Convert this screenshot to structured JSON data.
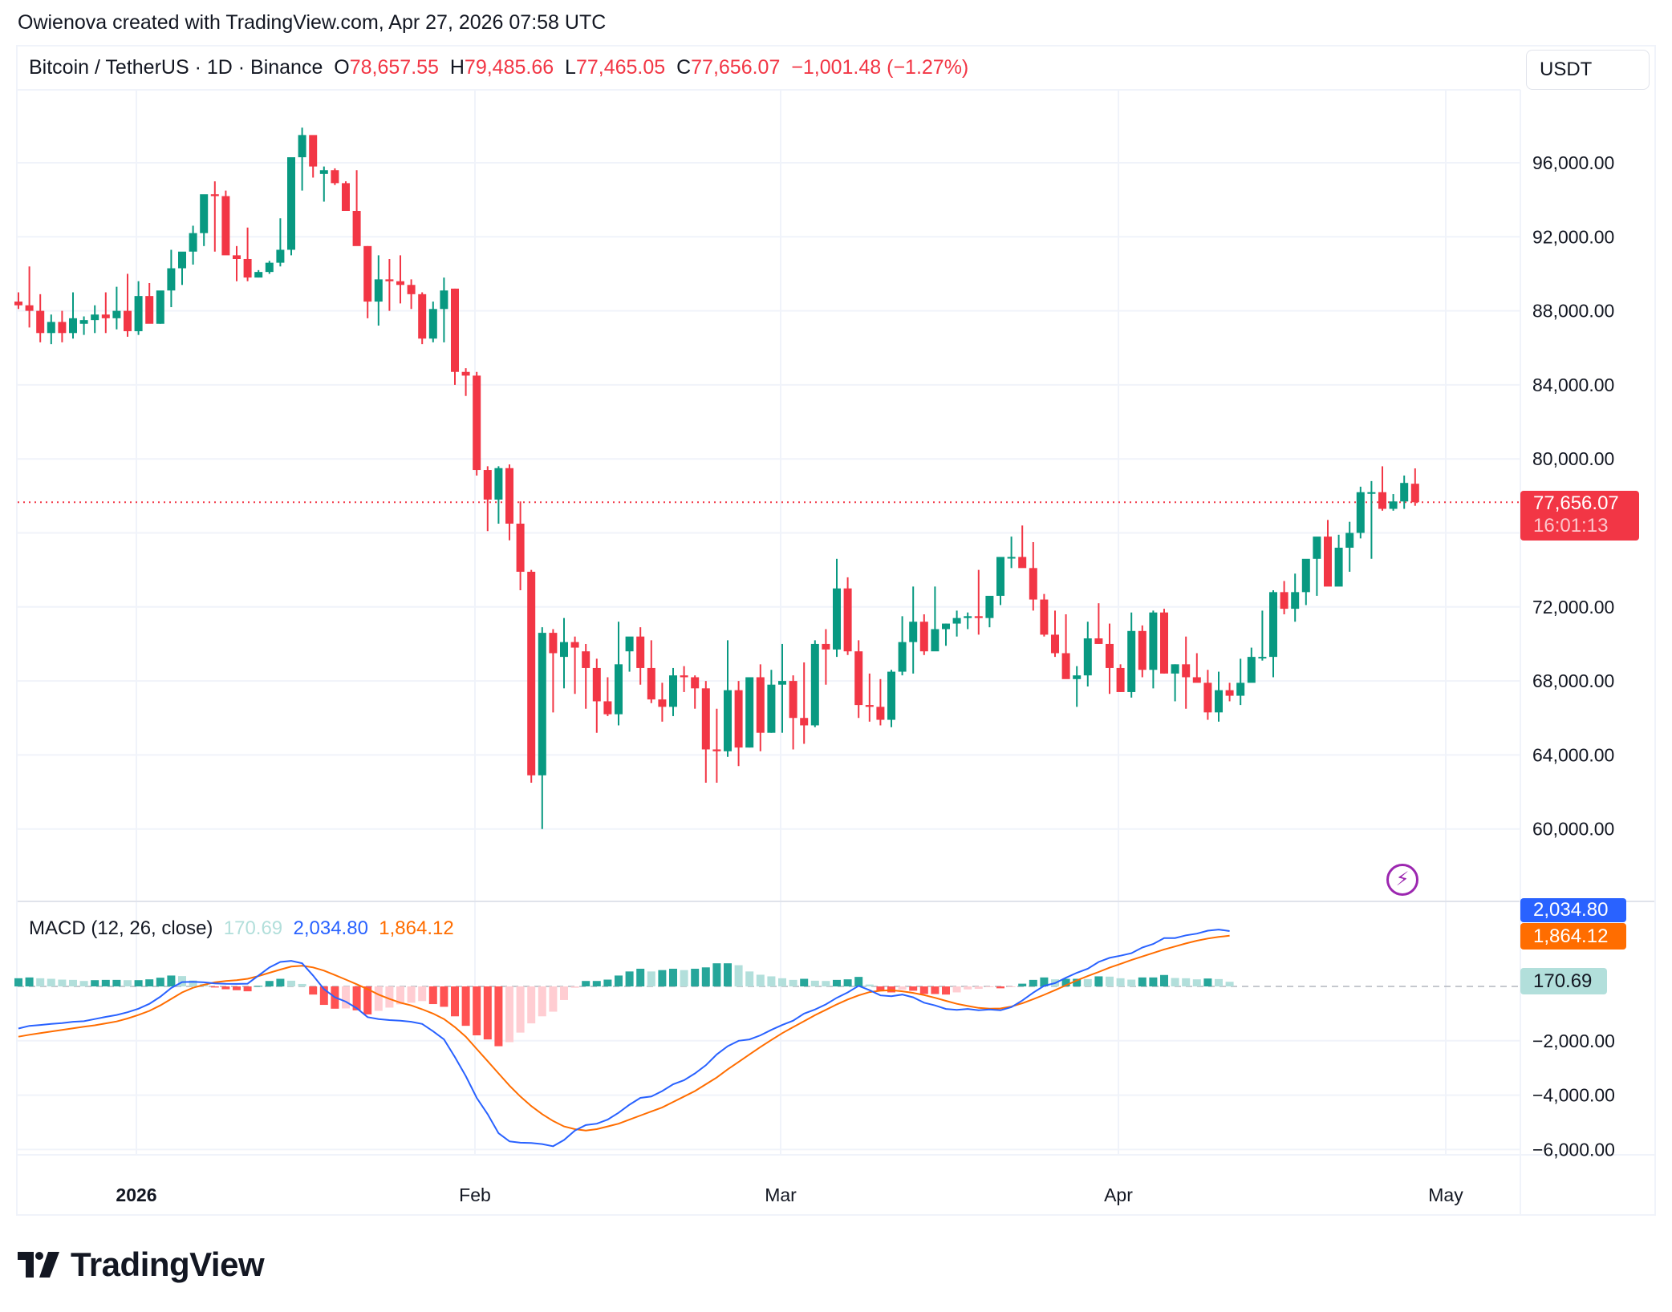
{
  "credit": "Owienova created with TradingView.com, Apr 27, 2026 07:58 UTC",
  "symbol": {
    "title": "Bitcoin / TetherUS · 1D · Binance",
    "open_label": "O",
    "open": "78,657.55",
    "high_label": "H",
    "high": "79,485.66",
    "low_label": "L",
    "low": "77,465.05",
    "close_label": "C",
    "close": "77,656.07",
    "change": "−1,001.48 (−1.27%)"
  },
  "currency_button": "USDT",
  "price_badge": {
    "price": "77,656.07",
    "countdown": "16:01:13"
  },
  "macd": {
    "label": "MACD (12, 26, close)",
    "histogram": "170.69",
    "macd": "2,034.80",
    "signal": "1,864.12"
  },
  "branding": {
    "logo_text": "TradingView"
  },
  "colors": {
    "up": "#089981",
    "down": "#f23645",
    "macd_line": "#2962ff",
    "signal_line": "#ff6d00",
    "hist_up_strong": "#26a69a",
    "hist_up_weak": "#b2dfdb",
    "hist_down_strong": "#ff5252",
    "hist_down_weak": "#ffcdd2",
    "badge_price": "#f23645",
    "indicator_icon": "#9c27b0"
  },
  "chart_data": [
    {
      "type": "candlestick",
      "title": "Bitcoin / TetherUS · 1D · Binance",
      "xlabel": "",
      "ylabel": "USDT",
      "x_ticks": [
        "2026",
        "Feb",
        "Mar",
        "Apr",
        "May"
      ],
      "y_ticks": [
        "96,000.00",
        "92,000.00",
        "88,000.00",
        "84,000.00",
        "80,000.00",
        "72,000.00",
        "68,000.00",
        "64,000.00",
        "60,000.00"
      ],
      "ylim": [
        57500,
        100500
      ],
      "grid": true,
      "last_price": 77656.07,
      "start_date": "2025-12-21",
      "ohlc": [
        [
          88500,
          89000,
          88100,
          88300
        ],
        [
          88300,
          90400,
          87100,
          88000
        ],
        [
          88000,
          88900,
          86300,
          86800
        ],
        [
          86800,
          87800,
          86200,
          87400
        ],
        [
          87400,
          88000,
          86300,
          86800
        ],
        [
          86800,
          89000,
          86500,
          87600
        ],
        [
          87300,
          87700,
          86700,
          87500
        ],
        [
          87500,
          88300,
          86800,
          87800
        ],
        [
          87800,
          89000,
          86800,
          87600
        ],
        [
          87600,
          89300,
          87000,
          88000
        ],
        [
          88000,
          90000,
          86600,
          86900
        ],
        [
          86900,
          89600,
          86700,
          88800
        ],
        [
          88800,
          89500,
          87400,
          87300
        ],
        [
          87300,
          88500,
          87300,
          89100
        ],
        [
          89100,
          91300,
          88200,
          90300
        ],
        [
          90300,
          91000,
          89400,
          91200
        ],
        [
          91200,
          92600,
          90500,
          92200
        ],
        [
          92200,
          94100,
          91500,
          94300
        ],
        [
          94300,
          95000,
          91200,
          94200
        ],
        [
          94200,
          94500,
          91200,
          91000
        ],
        [
          91000,
          91500,
          89600,
          90800
        ],
        [
          90800,
          92500,
          89600,
          89800
        ],
        [
          89800,
          90200,
          89800,
          90100
        ],
        [
          90100,
          90700,
          90000,
          90600
        ],
        [
          90600,
          93000,
          90400,
          91300
        ],
        [
          91300,
          96200,
          91000,
          96300
        ],
        [
          96300,
          97900,
          94500,
          97500
        ],
        [
          97500,
          97300,
          95200,
          95800
        ],
        [
          95400,
          95800,
          93900,
          95600
        ],
        [
          95600,
          95700,
          94800,
          94900
        ],
        [
          94900,
          95000,
          94200,
          93400
        ],
        [
          93400,
          95600,
          93000,
          91500
        ],
        [
          91500,
          91500,
          87600,
          88500
        ],
        [
          88500,
          91000,
          87200,
          89700
        ],
        [
          89700,
          90800,
          88000,
          89600
        ],
        [
          89600,
          91000,
          88400,
          89400
        ],
        [
          89400,
          89700,
          88100,
          88900
        ],
        [
          88900,
          89000,
          86200,
          86500
        ],
        [
          86500,
          88500,
          86300,
          88100
        ],
        [
          88100,
          89800,
          86300,
          89100
        ],
        [
          89200,
          89200,
          84000,
          84700
        ],
        [
          84700,
          84900,
          83400,
          84500
        ],
        [
          84500,
          84700,
          79100,
          79400
        ],
        [
          79400,
          79600,
          76100,
          77800
        ],
        [
          77800,
          79600,
          76500,
          79500
        ],
        [
          79500,
          79700,
          75600,
          76500
        ],
        [
          76500,
          77700,
          72900,
          73900
        ],
        [
          73900,
          74000,
          62500,
          62900
        ],
        [
          62900,
          70900,
          60000,
          70600
        ],
        [
          70600,
          70800,
          66300,
          69500
        ],
        [
          69300,
          71400,
          67600,
          70100
        ],
        [
          70100,
          70400,
          67300,
          69800
        ],
        [
          69600,
          70000,
          66500,
          68700
        ],
        [
          68700,
          69200,
          65200,
          66900
        ],
        [
          66900,
          68200,
          66100,
          66200
        ],
        [
          66200,
          71200,
          65600,
          68900
        ],
        [
          69600,
          70000,
          68500,
          70400
        ],
        [
          70400,
          70900,
          67800,
          68700
        ],
        [
          68700,
          70200,
          66800,
          67000
        ],
        [
          67000,
          67900,
          65800,
          66600
        ],
        [
          66600,
          68700,
          66100,
          68300
        ],
        [
          68300,
          68800,
          67400,
          68200
        ],
        [
          68200,
          68300,
          66500,
          67600
        ],
        [
          67600,
          68000,
          62500,
          64300
        ],
        [
          64300,
          66500,
          62500,
          64200
        ],
        [
          64200,
          70200,
          63900,
          67500
        ],
        [
          67500,
          68000,
          63400,
          64400
        ],
        [
          64400,
          68000,
          64400,
          68200
        ],
        [
          68200,
          68900,
          64200,
          65200
        ],
        [
          65200,
          68600,
          65200,
          67800
        ],
        [
          67800,
          70000,
          65200,
          68000
        ],
        [
          68000,
          68300,
          64300,
          66000
        ],
        [
          66000,
          69000,
          64600,
          65600
        ],
        [
          65600,
          70200,
          65500,
          70000
        ],
        [
          70000,
          70800,
          67800,
          69700
        ],
        [
          69700,
          74600,
          69300,
          73000
        ],
        [
          73000,
          73600,
          69400,
          69600
        ],
        [
          69600,
          70200,
          66000,
          66700
        ],
        [
          66700,
          68400,
          65800,
          66600
        ],
        [
          66600,
          68100,
          65600,
          65900
        ],
        [
          65900,
          68600,
          65500,
          68500
        ],
        [
          68500,
          71500,
          68300,
          70100
        ],
        [
          70100,
          73100,
          68400,
          71200
        ],
        [
          71200,
          71600,
          69400,
          69600
        ],
        [
          69600,
          73100,
          69800,
          70800
        ],
        [
          70800,
          71100,
          69900,
          71100
        ],
        [
          71100,
          71800,
          70400,
          71400
        ],
        [
          71400,
          71700,
          70800,
          71500
        ],
        [
          71500,
          74000,
          70500,
          71400
        ],
        [
          71400,
          72100,
          70900,
          72600
        ],
        [
          72600,
          73200,
          72100,
          74700
        ],
        [
          74700,
          75800,
          74100,
          74700
        ],
        [
          74700,
          76400,
          74300,
          74100
        ],
        [
          74100,
          75500,
          71800,
          72400
        ],
        [
          72400,
          72700,
          70400,
          70500
        ],
        [
          70500,
          71800,
          69300,
          69500
        ],
        [
          69500,
          71600,
          68500,
          68100
        ],
        [
          68100,
          68800,
          66600,
          68300
        ],
        [
          68300,
          71200,
          67700,
          70300
        ],
        [
          70300,
          72200,
          70000,
          70000
        ],
        [
          70000,
          71100,
          67300,
          68700
        ],
        [
          68700,
          68900,
          67400,
          67400
        ],
        [
          67400,
          71700,
          67100,
          70700
        ],
        [
          70700,
          71000,
          68200,
          68600
        ],
        [
          68600,
          71800,
          67600,
          71700
        ],
        [
          71700,
          71900,
          68400,
          68400
        ],
        [
          68400,
          68900,
          66900,
          68900
        ],
        [
          68900,
          70400,
          66500,
          68200
        ],
        [
          68200,
          69500,
          68000,
          67900
        ],
        [
          67900,
          68600,
          65900,
          66300
        ],
        [
          66300,
          68500,
          65800,
          67500
        ],
        [
          67500,
          67900,
          66900,
          67200
        ],
        [
          67200,
          69200,
          66700,
          67900
        ],
        [
          67900,
          69800,
          68000,
          69300
        ],
        [
          69300,
          71800,
          69100,
          69300
        ],
        [
          69300,
          72900,
          68200,
          72800
        ],
        [
          72800,
          73400,
          71600,
          71900
        ],
        [
          71900,
          73800,
          71200,
          72800
        ],
        [
          72800,
          74500,
          72100,
          74600
        ],
        [
          74600,
          75100,
          72600,
          75800
        ],
        [
          75800,
          76700,
          74500,
          73100
        ],
        [
          73100,
          75900,
          73300,
          75200
        ],
        [
          75200,
          76600,
          73900,
          76000
        ],
        [
          76000,
          78500,
          75700,
          78200
        ],
        [
          78200,
          78800,
          74600,
          78200
        ],
        [
          78200,
          79600,
          77200,
          77300
        ],
        [
          77300,
          78100,
          77200,
          77700
        ],
        [
          77700,
          79100,
          77300,
          78700
        ],
        [
          78657.55,
          79485.66,
          77465.05,
          77656.07
        ]
      ]
    },
    {
      "type": "line+bar",
      "title": "MACD (12, 26, close)",
      "y_ticks": [
        "−2,000.00",
        "−4,000.00",
        "−6,000.00"
      ],
      "ylim": [
        -6900,
        3100
      ],
      "series": [
        {
          "name": "MACD",
          "color": "#2962ff",
          "last": 2034.8
        },
        {
          "name": "Signal",
          "color": "#ff6d00",
          "last": 1864.12
        },
        {
          "name": "Histogram",
          "last": 170.69
        }
      ],
      "macd_values": [
        -1550,
        -1450,
        -1420,
        -1380,
        -1350,
        -1300,
        -1280,
        -1200,
        -1120,
        -1050,
        -950,
        -820,
        -640,
        -380,
        -60,
        160,
        170,
        150,
        110,
        95,
        90,
        100,
        400,
        700,
        900,
        940,
        850,
        400,
        -100,
        -400,
        -560,
        -800,
        -1130,
        -1200,
        -1240,
        -1260,
        -1300,
        -1380,
        -1650,
        -1950,
        -2600,
        -3300,
        -4100,
        -4700,
        -5400,
        -5700,
        -5750,
        -5760,
        -5800,
        -5880,
        -5650,
        -5300,
        -5100,
        -5050,
        -4900,
        -4650,
        -4350,
        -4100,
        -4050,
        -3850,
        -3600,
        -3450,
        -3200,
        -2900,
        -2500,
        -2200,
        -2000,
        -1950,
        -1800,
        -1600,
        -1420,
        -1260,
        -1000,
        -850,
        -660,
        -420,
        -220,
        20,
        -140,
        -330,
        -360,
        -300,
        -400,
        -600,
        -700,
        -830,
        -860,
        -830,
        -880,
        -850,
        -880,
        -760,
        -520,
        -230,
        20,
        120,
        320,
        500,
        650,
        900,
        1050,
        1130,
        1220,
        1430,
        1560,
        1780,
        1780,
        1880,
        1940,
        2050,
        2090,
        2034.8
      ],
      "signal_values": [
        -1850,
        -1780,
        -1720,
        -1660,
        -1600,
        -1540,
        -1480,
        -1430,
        -1360,
        -1290,
        -1180,
        -1050,
        -900,
        -700,
        -460,
        -220,
        -50,
        60,
        150,
        200,
        230,
        280,
        380,
        500,
        620,
        730,
        760,
        700,
        580,
        420,
        250,
        80,
        -100,
        -300,
        -460,
        -600,
        -700,
        -840,
        -1000,
        -1200,
        -1500,
        -1850,
        -2300,
        -2750,
        -3200,
        -3650,
        -4050,
        -4400,
        -4700,
        -4950,
        -5150,
        -5250,
        -5300,
        -5250,
        -5150,
        -5050,
        -4900,
        -4750,
        -4600,
        -4450,
        -4250,
        -4050,
        -3850,
        -3600,
        -3350,
        -3050,
        -2780,
        -2500,
        -2230,
        -1970,
        -1720,
        -1500,
        -1280,
        -1060,
        -860,
        -660,
        -480,
        -330,
        -210,
        -160,
        -140,
        -180,
        -240,
        -320,
        -420,
        -530,
        -640,
        -720,
        -790,
        -820,
        -810,
        -740,
        -620,
        -470,
        -310,
        -140,
        40,
        220,
        380,
        530,
        690,
        830,
        970,
        1100,
        1230,
        1360,
        1470,
        1580,
        1680,
        1760,
        1820,
        1864.12
      ]
    }
  ]
}
